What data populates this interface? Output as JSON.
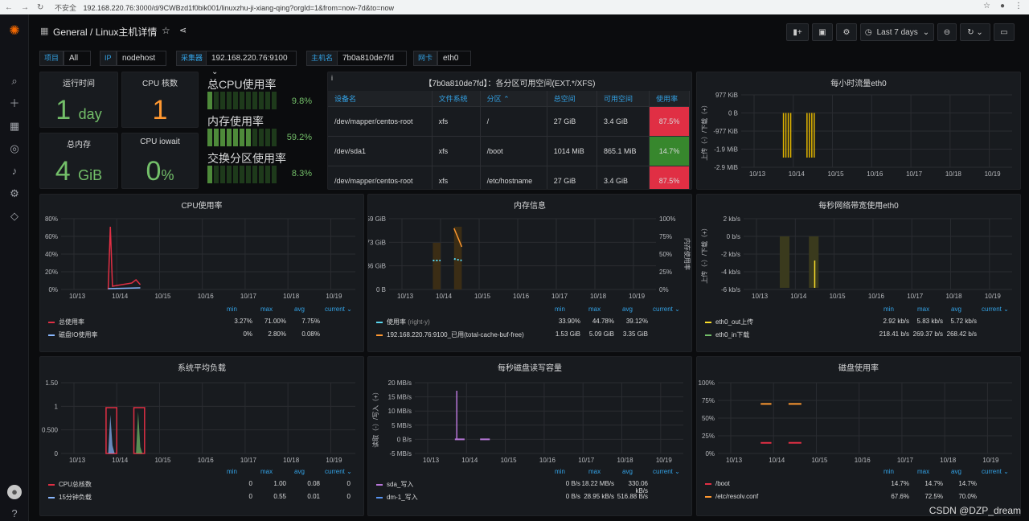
{
  "browser": {
    "insecure_label": "不安全",
    "url": "192.168.220.76:3000/d/9CWBzd1f0bik001/linuxzhu-ji-xiang-qing?orgId=1&from=now-7d&to=now"
  },
  "header": {
    "breadcrumb": "General / Linux主机详情",
    "time_range": "Last 7 days"
  },
  "variables": [
    {
      "label": "项目",
      "value": "All"
    },
    {
      "label": "IP",
      "value": "nodehost"
    },
    {
      "label": "采集器",
      "value": "192.168.220.76:9100"
    },
    {
      "label": "主机名",
      "value": "7b0a810de7fd"
    },
    {
      "label": "网卡",
      "value": "eth0"
    }
  ],
  "stats": {
    "uptime": {
      "title": "运行时间",
      "value": "1",
      "unit": "day"
    },
    "cpu_cores": {
      "title": "CPU 核数",
      "value": "1"
    },
    "total_mem": {
      "title": "总内存",
      "value": "4",
      "unit": "GiB"
    },
    "iowait": {
      "title": "CPU iowait",
      "value": "0",
      "unit": "%"
    }
  },
  "gauges": [
    {
      "title": "总CPU使用率",
      "value": "9.8%",
      "fraction": 0.098
    },
    {
      "title": "内存使用率",
      "value": "59.2%",
      "fraction": 0.592
    },
    {
      "title": "交换分区使用率",
      "value": "8.3%",
      "fraction": 0.083
    }
  ],
  "fs_panel": {
    "title": "【7b0a810de7fd】：各分区可用空间(EXT.*/XFS)",
    "headers": [
      "设备名",
      "文件系统",
      "分区 ⌃",
      "总空间",
      "可用空间",
      "使用率"
    ],
    "rows": [
      [
        "/dev/mapper/centos-root",
        "xfs",
        "/",
        "27 GiB",
        "3.4 GiB",
        "87.5%"
      ],
      [
        "/dev/sda1",
        "xfs",
        "/boot",
        "1014 MiB",
        "865.1 MiB",
        "14.7%"
      ],
      [
        "/dev/mapper/centos-root",
        "xfs",
        "/etc/hostname",
        "27 GiB",
        "3.4 GiB",
        "87.5%"
      ]
    ]
  },
  "chart_data": [
    {
      "id": "hourly-traffic",
      "type": "bar",
      "title": "每小时流量eth0",
      "ylabel": "上传（-）/下载（+）",
      "y_ticks": [
        "977 KiB",
        "0 B",
        "-977 KiB",
        "-1.9 MiB",
        "-2.9 MiB"
      ],
      "x_ticks": [
        "10/13",
        "10/14",
        "10/15",
        "10/16",
        "10/17",
        "10/18",
        "10/19"
      ],
      "bursts": [
        {
          "x_start": "10/13 18:00",
          "x_end": "10/13 23:00",
          "min": "-2.5 MiB"
        },
        {
          "x_start": "10/14 09:00",
          "x_end": "10/14 14:00",
          "min": "-2.5 MiB"
        }
      ]
    },
    {
      "id": "cpu-usage",
      "type": "line",
      "title": "CPU使用率",
      "y_ticks": [
        "80%",
        "60%",
        "40%",
        "20%",
        "0%"
      ],
      "x_ticks": [
        "10/13",
        "10/14",
        "10/15",
        "10/16",
        "10/17",
        "10/18",
        "10/19"
      ],
      "legend_headers": [
        "min",
        "max",
        "avg",
        "current ⌄"
      ],
      "series": [
        {
          "name": "总使用率",
          "color": "#e02f44",
          "min": "3.27%",
          "max": "71.00%",
          "avg": "7.75%"
        },
        {
          "name": "磁盘IO使用率",
          "color": "#8ab8ff",
          "min": "0%",
          "max": "2.80%",
          "avg": "0.08%"
        }
      ]
    },
    {
      "id": "memory-info",
      "type": "line",
      "title": "内存信息",
      "y_ticks": [
        "5.59 GiB",
        "3.73 GiB",
        "1.86 GiB",
        "0 B"
      ],
      "y2_ticks": [
        "100%",
        "75%",
        "50%",
        "25%",
        "0%"
      ],
      "y2label": "内存使用率",
      "x_ticks": [
        "10/13",
        "10/14",
        "10/15",
        "10/16",
        "10/17",
        "10/18",
        "10/19"
      ],
      "legend_headers": [
        "min",
        "max",
        "avg",
        "current ⌄"
      ],
      "series": [
        {
          "name": "使用率",
          "suffix": "(right-y)",
          "color": "#5ad6ef",
          "min": "33.90%",
          "max": "44.78%",
          "avg": "39.12%"
        },
        {
          "name": "192.168.220.76:9100_已用(total-cache-buf-free)",
          "color": "#ff9830",
          "min": "1.53 GiB",
          "max": "5.09 GiB",
          "avg": "3.35 GiB"
        }
      ]
    },
    {
      "id": "net-bandwidth",
      "type": "line",
      "title": "每秒网络带宽使用eth0",
      "ylabel": "上传（-）/下载（+）",
      "y_ticks": [
        "2 kb/s",
        "0 b/s",
        "-2 kb/s",
        "-4 kb/s",
        "-6 kb/s"
      ],
      "x_ticks": [
        "10/13",
        "10/14",
        "10/15",
        "10/16",
        "10/17",
        "10/18",
        "10/19"
      ],
      "legend_headers": [
        "min",
        "max",
        "avg",
        "current ⌄"
      ],
      "series": [
        {
          "name": "eth0_out上传",
          "color": "#fade2a",
          "min": "2.92 kb/s",
          "max": "5.83 kb/s",
          "avg": "5.72 kb/s"
        },
        {
          "name": "eth0_in下载",
          "color": "#73bf69",
          "min": "218.41 b/s",
          "max": "269.37 b/s",
          "avg": "268.42 b/s"
        }
      ]
    },
    {
      "id": "load-avg",
      "type": "line",
      "title": "系统平均负载",
      "y_ticks": [
        "1.50",
        "1",
        "0.500",
        "0"
      ],
      "x_ticks": [
        "10/13",
        "10/14",
        "10/15",
        "10/16",
        "10/17",
        "10/18",
        "10/19"
      ],
      "legend_headers": [
        "min",
        "max",
        "avg",
        "current ⌄"
      ],
      "series": [
        {
          "name": "CPU总核数",
          "color": "#e02f44",
          "min": "0",
          "max": "1.00",
          "avg": "0.08",
          "current": "0"
        },
        {
          "name": "15分钟负载",
          "color": "#8ab8ff",
          "min": "0",
          "max": "0.55",
          "avg": "0.01",
          "current": "0"
        }
      ]
    },
    {
      "id": "disk-io",
      "type": "line",
      "title": "每秒磁盘读写容量",
      "ylabel": "读取（-）/写入（+）",
      "y_ticks": [
        "20 MB/s",
        "15 MB/s",
        "10 MB/s",
        "5 MB/s",
        "0 B/s",
        "-5 MB/s"
      ],
      "x_ticks": [
        "10/13",
        "10/14",
        "10/15",
        "10/16",
        "10/17",
        "10/18",
        "10/19"
      ],
      "legend_headers": [
        "min",
        "max",
        "avg",
        "current ⌄"
      ],
      "series": [
        {
          "name": "sda_写入",
          "color": "#b877d9",
          "min": "0 B/s",
          "max": "18.22 MB/s",
          "avg": "330.06 kB/s"
        },
        {
          "name": "dm-1_写入",
          "color": "#5794f2",
          "min": "0 B/s",
          "max": "28.95 kB/s",
          "avg": "516.88 B/s"
        }
      ]
    },
    {
      "id": "disk-usage",
      "type": "line",
      "title": "磁盘使用率",
      "y_ticks": [
        "100%",
        "75%",
        "50%",
        "25%",
        "0%"
      ],
      "x_ticks": [
        "10/13",
        "10/14",
        "10/15",
        "10/16",
        "10/17",
        "10/18",
        "10/19"
      ],
      "legend_headers": [
        "min",
        "max",
        "avg",
        "current ⌄"
      ],
      "series": [
        {
          "name": "/boot",
          "color": "#e02f44",
          "min": "14.7%",
          "max": "14.7%",
          "avg": "14.7%"
        },
        {
          "name": "/etc/resolv.conf",
          "color": "#ff9830",
          "min": "67.6%",
          "max": "72.5%",
          "avg": "70.0%"
        }
      ]
    }
  ],
  "watermark": "CSDN @DZP_dream"
}
